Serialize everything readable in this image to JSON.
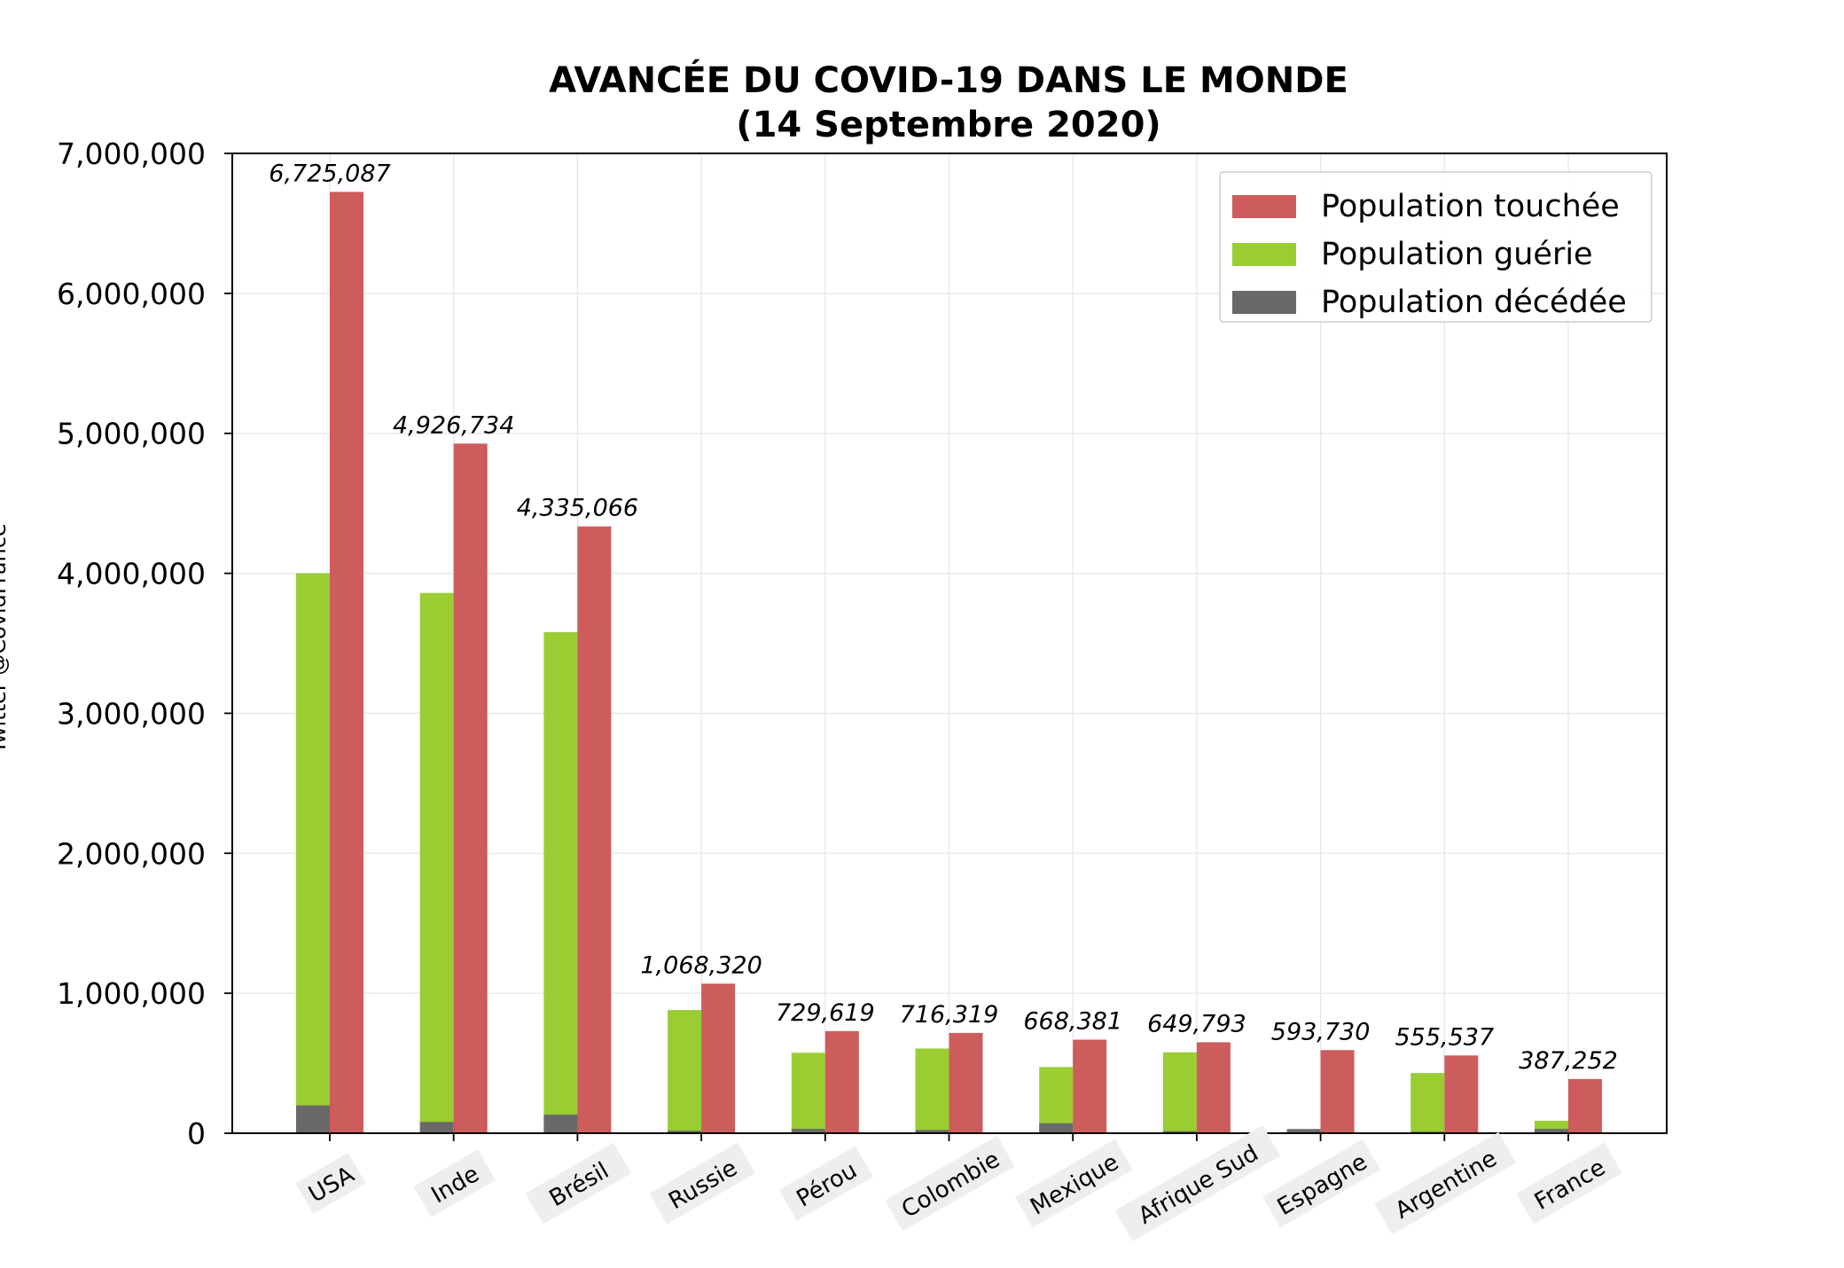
{
  "chart_data": {
    "type": "bar",
    "title": "AVANCÉE DU COVID-19 DANS LE MONDE",
    "subtitle": "(14 Septembre 2020)",
    "credit": "Twitter @CovidFrance",
    "categories": [
      "USA",
      "Inde",
      "Brésil",
      "Russie",
      "Pérou",
      "Colombie",
      "Mexique",
      "Afrique Sud",
      "Espagne",
      "Argentine",
      "France"
    ],
    "series": [
      {
        "name": "Population touchée",
        "color": "#cd5c5c",
        "values": [
          6725087,
          4926734,
          4335066,
          1068320,
          729619,
          716319,
          668381,
          649793,
          593730,
          555537,
          387252
        ]
      },
      {
        "name": "Population guérie",
        "color": "#9acd32",
        "values": [
          4000000,
          3860000,
          3580000,
          880000,
          575000,
          605000,
          473000,
          578000,
          0,
          430000,
          89000
        ]
      },
      {
        "name": "Population décédée",
        "color": "#696969",
        "values": [
          199000,
          80000,
          133000,
          18000,
          31000,
          23000,
          71000,
          15000,
          30000,
          11000,
          31000
        ]
      }
    ],
    "data_labels": [
      "6,725,087",
      "4,926,734",
      "4,335,066",
      "1,068,320",
      "729,619",
      "716,319",
      "668,381",
      "649,793",
      "593,730",
      "555,537",
      "387,252"
    ],
    "yticks": [
      "0",
      "1,000,000",
      "2,000,000",
      "3,000,000",
      "4,000,000",
      "5,000,000",
      "6,000,000",
      "7,000,000"
    ],
    "ylim": [
      0,
      7000000
    ],
    "grid": true,
    "legend_position": "top-right"
  }
}
